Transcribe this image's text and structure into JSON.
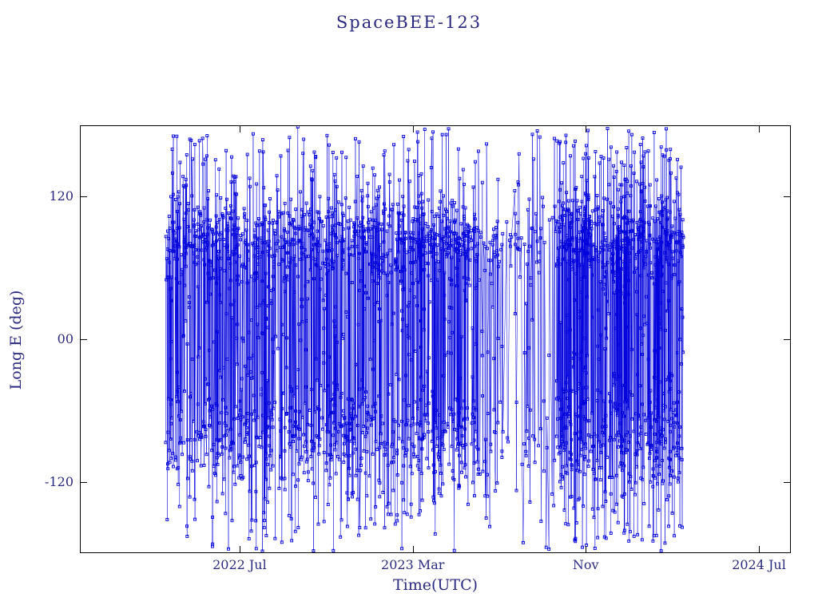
{
  "page": {
    "background": "#ffffff"
  },
  "chart_data": {
    "type": "scatter",
    "title": "SpaceBEE-123",
    "xlabel": "Time(UTC)",
    "ylabel": "Long E (deg)",
    "legend": "none",
    "grid": false,
    "marker": "open-square",
    "marker_size": 3,
    "line_style": "thin-connecting-lines",
    "colors": {
      "data": "#0000dd",
      "text": "#2a2a80",
      "frame": "#000000",
      "background": "#ffffff"
    },
    "xlim": [
      2021.885,
      2024.623
    ],
    "ylim": [
      -180,
      180
    ],
    "x_ticks": [
      {
        "label": "2022 Jul",
        "value": 2022.5
      },
      {
        "label": "2023 Mar",
        "value": 2023.167
      },
      {
        "label": "Nov",
        "value": 2023.833
      },
      {
        "label": "2024 Jul",
        "value": 2024.5
      }
    ],
    "y_ticks": [
      {
        "label": "120",
        "value": 120
      },
      {
        "label": "00",
        "value": 0
      },
      {
        "label": "-120",
        "value": -120
      }
    ],
    "data_coverage": {
      "start_decimal_year": 2022.215,
      "end_decimal_year": 2024.21,
      "sparse_interval": [
        2023.42,
        2023.72
      ]
    },
    "series": [
      {
        "name": "Long E (deg)",
        "description": "Sub-satellite east-longitude samples vs time; dense clustering near +80 deg and -80 deg with frequent full-range wrap excursions producing vertical connecting lines",
        "generator": {
          "seed": 1234567,
          "segments": [
            {
              "t0": 2022.215,
              "t1": 2023.42,
              "n": 1750
            },
            {
              "t0": 2023.42,
              "t1": 2023.72,
              "n": 150
            },
            {
              "t0": 2023.72,
              "t1": 2024.21,
              "n": 950
            }
          ],
          "longitude_mixture": [
            {
              "weight": 0.4,
              "dist": "normal",
              "mean": 82,
              "sd": 19
            },
            {
              "weight": 0.22,
              "dist": "normal",
              "mean": -83,
              "sd": 21
            },
            {
              "weight": 0.38,
              "dist": "uniform",
              "min": -179,
              "max": 179
            }
          ]
        }
      }
    ]
  }
}
